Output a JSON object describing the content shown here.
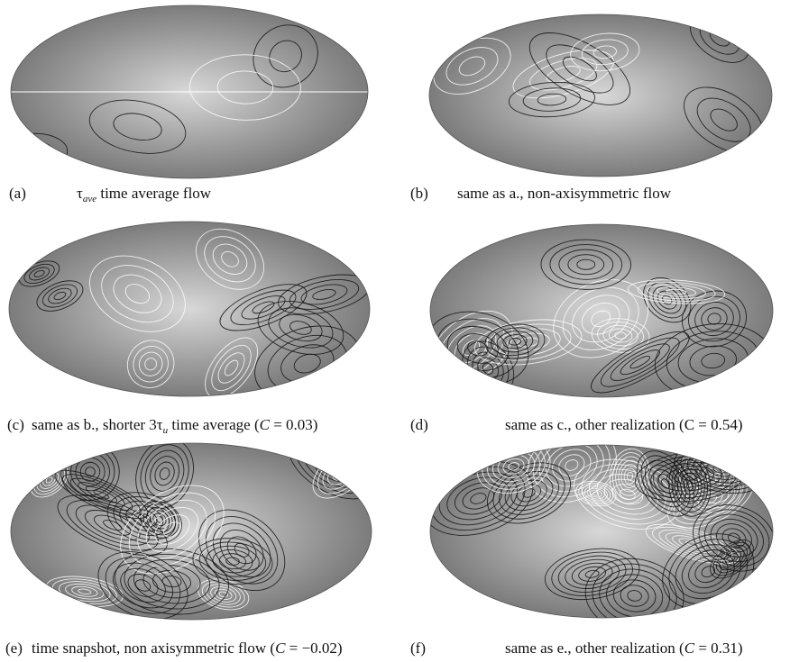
{
  "panels": [
    {
      "label": "(a)",
      "caption": [
        {
          "text": "τ"
        },
        {
          "sub": "ave"
        },
        {
          "text": " time average flow"
        }
      ]
    },
    {
      "label": "(b)",
      "caption": [
        {
          "text": "same as a., non-axisymmetric flow"
        }
      ]
    },
    {
      "label": "(c)",
      "caption": [
        {
          "text": "same as b., shorter 3τ"
        },
        {
          "sub": "u"
        },
        {
          "text": " time average ("
        },
        {
          "italic": "C"
        },
        {
          "text": " = 0.03)"
        }
      ]
    },
    {
      "label": "(d)",
      "caption": [
        {
          "text": "same as c., other realization (C = 0.54)"
        }
      ]
    },
    {
      "label": "(e)",
      "caption": [
        {
          "text": "time snapshot, non axisymmetric flow ("
        },
        {
          "italic": "C"
        },
        {
          "text": " = −0.02)"
        }
      ]
    },
    {
      "label": "(f)",
      "caption": [
        {
          "text": "same as e., other realization ("
        },
        {
          "italic": "C"
        },
        {
          "text": " = 0.31)"
        }
      ]
    }
  ]
}
